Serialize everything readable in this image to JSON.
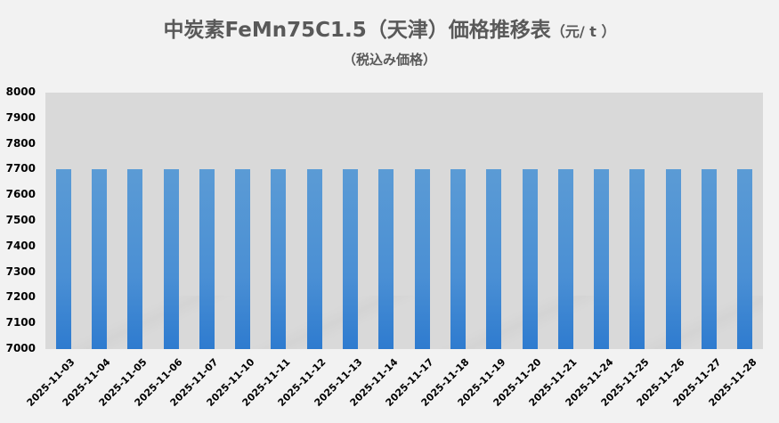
{
  "chart_data": {
    "type": "bar",
    "title": "中炭素FeMn75C1.5（天津）価格推移表",
    "title_unit": "（元/ t ）",
    "subtitle": "（税込み価格）",
    "xlabel": "",
    "ylabel": "",
    "ylim": [
      7000,
      8000
    ],
    "yticks": [
      "8000",
      "7900",
      "7800",
      "7700",
      "7600",
      "7500",
      "7400",
      "7300",
      "7200",
      "7100",
      "7000"
    ],
    "categories": [
      "2025-11-03",
      "2025-11-04",
      "2025-11-05",
      "2025-11-06",
      "2025-11-07",
      "2025-11-10",
      "2025-11-11",
      "2025-11-12",
      "2025-11-13",
      "2025-11-14",
      "2025-11-17",
      "2025-11-18",
      "2025-11-19",
      "2025-11-20",
      "2025-11-21",
      "2025-11-24",
      "2025-11-25",
      "2025-11-26",
      "2025-11-27",
      "2025-11-28"
    ],
    "values": [
      7700,
      7700,
      7700,
      7700,
      7700,
      7700,
      7700,
      7700,
      7700,
      7700,
      7700,
      7700,
      7700,
      7700,
      7700,
      7700,
      7700,
      7700,
      7700,
      7700
    ],
    "grid": false,
    "legend": null,
    "colors": {
      "bar": "#5b9bd5",
      "plot_bg": "#d9d9d9",
      "page_bg": "#f2f2f2",
      "title": "#595959"
    }
  }
}
